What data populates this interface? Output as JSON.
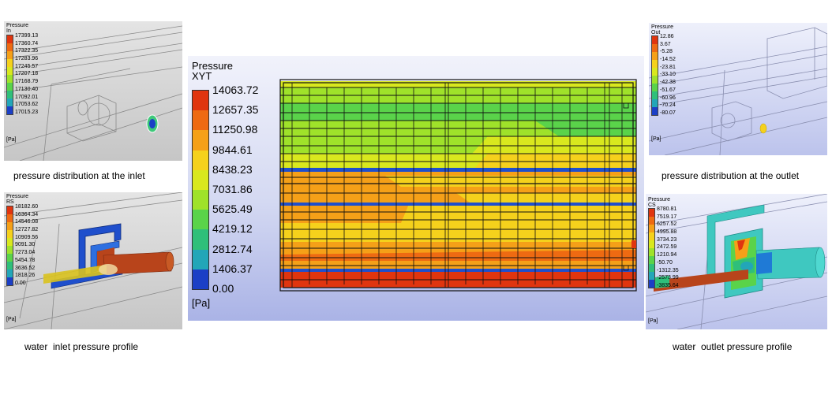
{
  "colors": {
    "ramp": [
      "#e0350f",
      "#ee6a12",
      "#f5a018",
      "#f5d11c",
      "#d9e81e",
      "#9fe22a",
      "#5ad34a",
      "#2fbf7a",
      "#22a6b8",
      "#1f7ad6",
      "#1b3fc6"
    ],
    "water_red": "#b8441b",
    "pipe_blue": "#1f4fcc",
    "pipe_cyan": "#3fc8c0"
  },
  "panels": {
    "inlet_dist": {
      "legend_title": "Pressure\nIn",
      "ticks": [
        "17399.13",
        "17360.74",
        "17322.35",
        "17283.96",
        "17245.57",
        "17207.18",
        "17168.79",
        "17130.40",
        "17092.01",
        "17053.62",
        "17015.23"
      ],
      "unit": "[Pa]",
      "caption": "pressure distribution at the inlet"
    },
    "inlet_profile": {
      "legend_title": "Pressure\nRS",
      "ticks": [
        "18182.60",
        "16364.34",
        "14546.08",
        "12727.82",
        "10909.56",
        "9091.30",
        "7273.04",
        "5454.78",
        "3636.52",
        "1818.26",
        "0.00"
      ],
      "unit": "[Pa]",
      "caption": "water  inlet pressure profile"
    },
    "main": {
      "legend_title": "Pressure\nXYT",
      "ticks": [
        "14063.72",
        "12657.35",
        "11250.98",
        "9844.61",
        "8438.23",
        "7031.86",
        "5625.49",
        "4219.12",
        "2812.74",
        "1406.37",
        "0.00"
      ],
      "unit": "[Pa]"
    },
    "outlet_dist": {
      "legend_title": "Pressure\nOut",
      "ticks": [
        "12.86",
        "3.67",
        "-5.28",
        "-14.52",
        "-23.81",
        "-33.10",
        "-42.38",
        "-51.67",
        "-60.96",
        "-70.24",
        "-80.07"
      ],
      "unit": "[Pa]",
      "caption": "pressure distribution at the outlet"
    },
    "outlet_profile": {
      "legend_title": "Pressure\nCS",
      "ticks": [
        "8780.81",
        "7519.17",
        "6257.52",
        "4995.88",
        "3734.23",
        "2472.59",
        "1210.94",
        "-50.70",
        "-1312.35",
        "-2573.99",
        "-3835.64"
      ],
      "unit": "[Pa]",
      "caption": "water  outlet pressure profile"
    }
  }
}
